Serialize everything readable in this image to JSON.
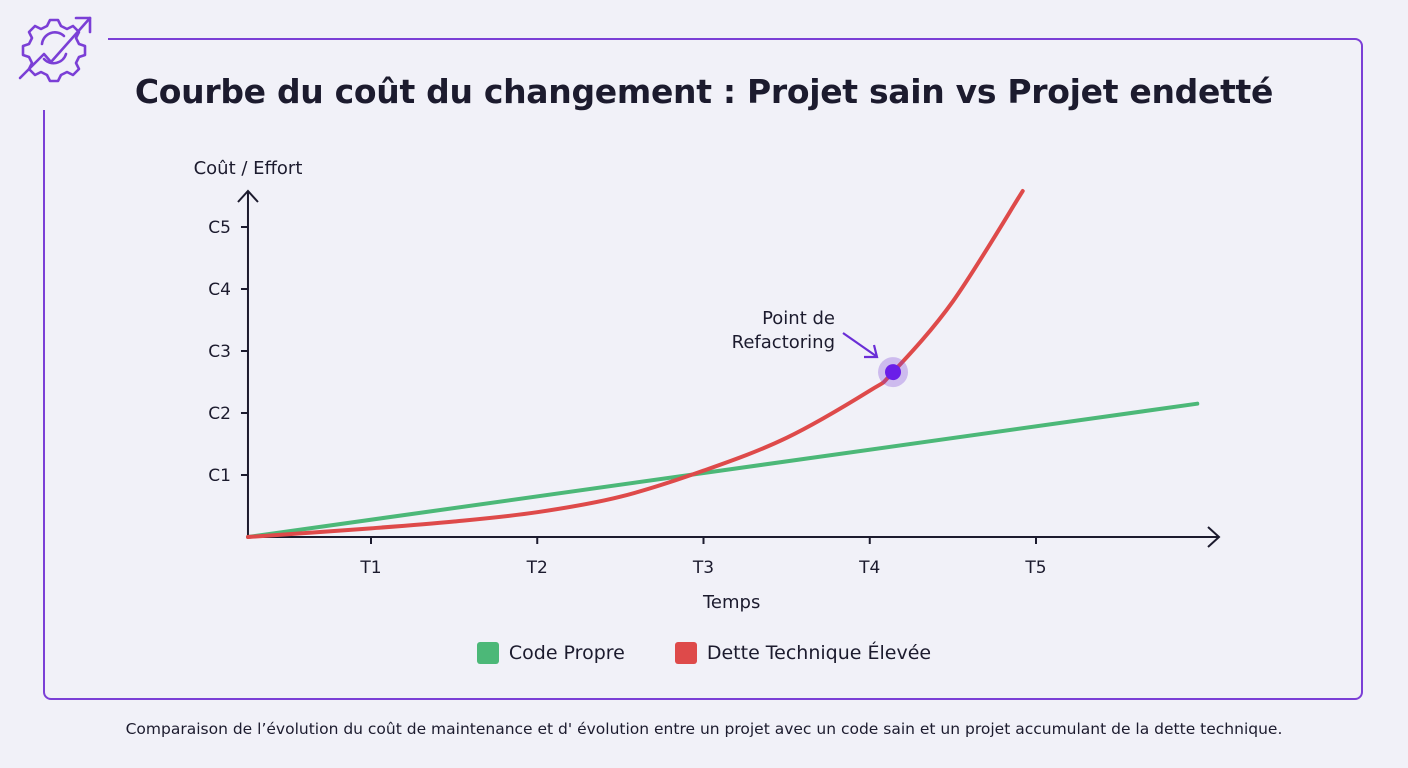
{
  "title": "Courbe du coût du changement : Projet sain vs Projet endetté",
  "caption": "Comparaison de l’évolution du coût de maintenance et d' évolution entre un projet avec un code sain et un projet accumulant de la dette technique.",
  "logo_icon": "gear-with-rising-arrow-icon",
  "colors": {
    "accent": "#7b3fd6",
    "green": "#4cb878",
    "red": "#de4a4a",
    "point": "#6a1ee8"
  },
  "chart_data": {
    "type": "line",
    "title": "Courbe du coût du changement : Projet sain vs Projet endetté",
    "xlabel": "Temps",
    "ylabel": "Coût / Effort",
    "x_ticks": [
      "T1",
      "T2",
      "T3",
      "T4",
      "T5"
    ],
    "y_ticks": [
      "C1",
      "C2",
      "C3",
      "C4",
      "C5"
    ],
    "xlim": [
      0.26,
      6.2
    ],
    "ylim": [
      0,
      5.6
    ],
    "grid": false,
    "legend_position": "bottom",
    "series": [
      {
        "name": "Code Propre",
        "color": "#4cb878",
        "x": [
          0.26,
          5.97
        ],
        "y": [
          0,
          2.15
        ]
      },
      {
        "name": "Dette Technique Élevée",
        "color": "#de4a4a",
        "x": [
          0.26,
          1,
          1.5,
          2,
          2.5,
          3,
          3.5,
          4,
          4.14,
          4.5,
          4.92
        ],
        "y": [
          0,
          0.14,
          0.25,
          0.4,
          0.65,
          1.07,
          1.6,
          2.36,
          2.66,
          3.8,
          5.58
        ]
      }
    ],
    "annotations": [
      {
        "text_line1": "Point de",
        "text_line2": "Refactoring",
        "x": 4.14,
        "y": 2.66
      }
    ]
  }
}
